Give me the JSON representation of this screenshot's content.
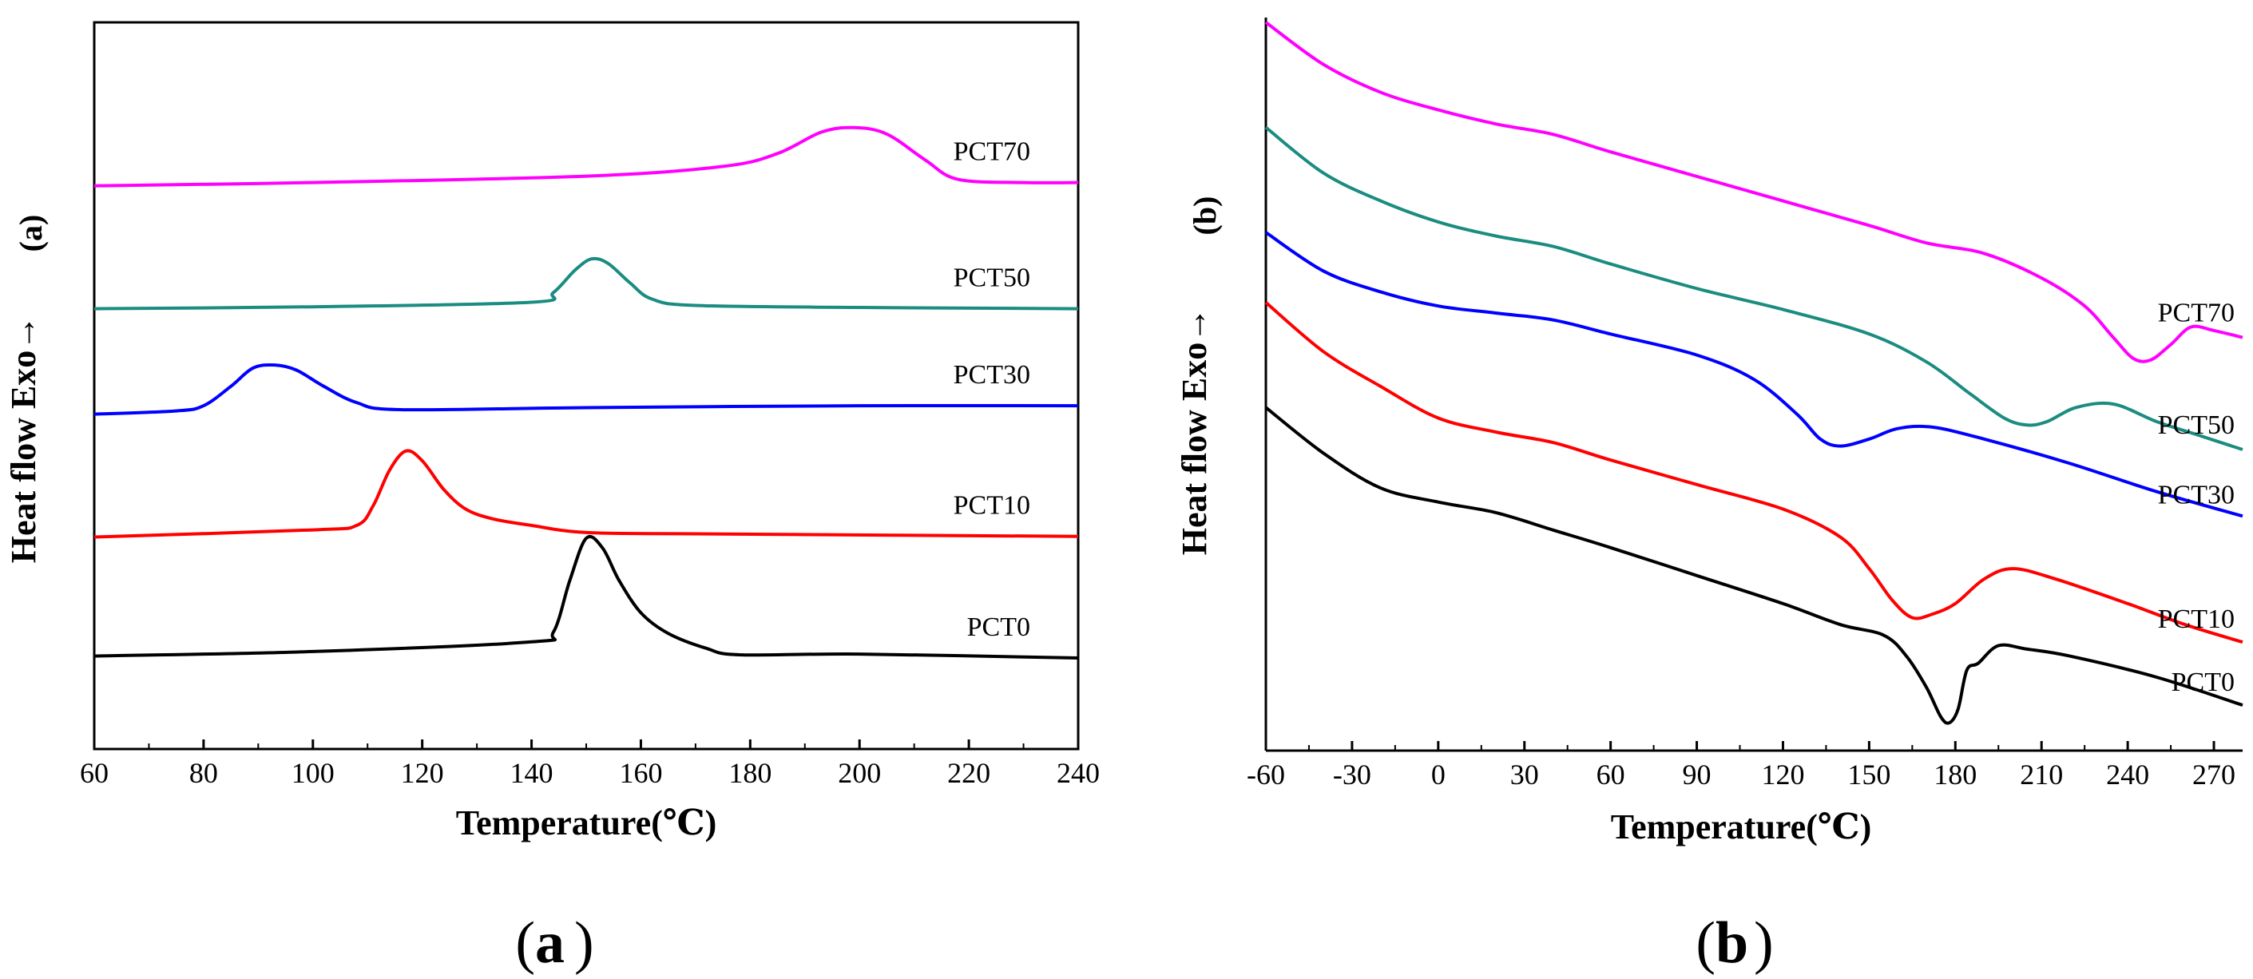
{
  "colors": {
    "PCT0": "#000000",
    "PCT10": "#ff0000",
    "PCT30": "#0000ff",
    "PCT50": "#1a8c80",
    "PCT70": "#ff00ff"
  },
  "chart_data": [
    {
      "panel": "a",
      "type": "line",
      "panel_tag": "(a)",
      "caption_letter": "a",
      "xlabel": "Temperature(℃)",
      "ylabel": "Heat flow   Exo→",
      "xlim": [
        60,
        240
      ],
      "ylim": [
        0,
        100
      ],
      "xticks": [
        60,
        80,
        100,
        120,
        140,
        160,
        180,
        200,
        220,
        240
      ],
      "yticks_shown": false,
      "series": [
        {
          "name": "PCT70",
          "label": "PCT70",
          "x": [
            60,
            100,
            150,
            175,
            185,
            193,
            199,
            205,
            212,
            218,
            230,
            240
          ],
          "y": [
            83,
            83.5,
            84.5,
            86,
            88,
            91.3,
            92,
            91,
            87,
            84,
            83.5,
            83.5
          ]
        },
        {
          "name": "PCT50",
          "label": "PCT50",
          "x": [
            60,
            100,
            140,
            144,
            148,
            151,
            154,
            158,
            162,
            170,
            200,
            240
          ],
          "y": [
            64,
            64.3,
            65,
            66.5,
            70,
            71.7,
            71,
            68,
            65.5,
            64.5,
            64.2,
            64
          ]
        },
        {
          "name": "PCT30",
          "label": "PCT30",
          "x": [
            60,
            75,
            80,
            85,
            89,
            93,
            97,
            102,
            108,
            116,
            150,
            200,
            240
          ],
          "y": [
            47.7,
            48.2,
            49,
            52,
            54.8,
            55.3,
            54.5,
            52,
            49.5,
            48.4,
            48.7,
            49,
            49
          ]
        },
        {
          "name": "PCT10",
          "label": "PCT10",
          "x": [
            60,
            100,
            108,
            111,
            114,
            117,
            120,
            124,
            128,
            133,
            140,
            150,
            170,
            240
          ],
          "y": [
            28.7,
            29.8,
            30.5,
            33.5,
            39,
            42,
            40.5,
            36,
            33,
            31.5,
            30.5,
            29.4,
            29.2,
            28.8
          ]
        },
        {
          "name": "PCT0",
          "label": "PCT0",
          "x": [
            60,
            100,
            140,
            144,
            147,
            150,
            153,
            156,
            160,
            165,
            172,
            178,
            200,
            240
          ],
          "y": [
            10.3,
            11,
            12.5,
            14,
            22,
            28.5,
            27,
            22,
            17,
            13.8,
            11.5,
            10.5,
            10.6,
            10
          ]
        }
      ]
    },
    {
      "panel": "b",
      "type": "line",
      "panel_tag": "(b)",
      "caption_letter": "b",
      "xlabel": "Temperature(℃)",
      "ylabel": "Heat flow   Exo→",
      "xlim": [
        -60,
        280
      ],
      "ylim": [
        0,
        100
      ],
      "xticks": [
        -60,
        -30,
        0,
        30,
        60,
        90,
        120,
        150,
        180,
        210,
        240,
        270
      ],
      "yticks_shown": false,
      "series": [
        {
          "name": "PCT70",
          "label": "PCT70",
          "x": [
            -60,
            -40,
            -20,
            0,
            20,
            40,
            60,
            90,
            120,
            150,
            170,
            190,
            210,
            225,
            235,
            242,
            248,
            255,
            262,
            270,
            280
          ],
          "y": [
            100,
            94,
            90,
            87.5,
            85.5,
            84,
            81.5,
            78,
            74.5,
            71,
            68.5,
            67,
            63.5,
            59.5,
            55,
            52,
            51.8,
            54,
            56.5,
            56,
            55
          ]
        },
        {
          "name": "PCT50",
          "label": "PCT50",
          "x": [
            -60,
            -40,
            -20,
            0,
            20,
            40,
            60,
            90,
            120,
            150,
            170,
            185,
            197,
            205,
            212,
            222,
            235,
            250,
            265,
            280
          ],
          "y": [
            85,
            78.5,
            74.5,
            71.5,
            69.5,
            68,
            65.5,
            62,
            59,
            55.5,
            51.5,
            47,
            43.5,
            42.5,
            43,
            45,
            45.5,
            43,
            41,
            39
          ]
        },
        {
          "name": "PCT30",
          "label": "PCT30",
          "x": [
            -60,
            -40,
            -20,
            0,
            20,
            40,
            60,
            90,
            110,
            125,
            133,
            140,
            150,
            160,
            172,
            190,
            220,
            250,
            280
          ],
          "y": [
            70,
            64.5,
            61.5,
            59.5,
            58.5,
            57.5,
            55.5,
            52.5,
            49,
            44,
            40.5,
            39.5,
            40.5,
            42,
            42.2,
            40.5,
            37,
            33,
            29.5
          ]
        },
        {
          "name": "PCT10",
          "label": "PCT10",
          "x": [
            -60,
            -40,
            -20,
            0,
            20,
            40,
            60,
            90,
            120,
            140,
            150,
            158,
            165,
            172,
            180,
            190,
            200,
            215,
            240,
            260,
            280
          ],
          "y": [
            60,
            53,
            48,
            43.5,
            41.5,
            40,
            37.5,
            34,
            30.5,
            26.5,
            22,
            17.5,
            15,
            15.5,
            17,
            20.5,
            22,
            20.5,
            17,
            14,
            11.5
          ]
        },
        {
          "name": "PCT0",
          "label": "PCT0",
          "x": [
            -60,
            -40,
            -20,
            0,
            20,
            40,
            60,
            90,
            120,
            140,
            155,
            163,
            170,
            175,
            178,
            181,
            184,
            188,
            195,
            205,
            220,
            250,
            280
          ],
          "y": [
            45,
            38.5,
            33.5,
            31.5,
            30,
            27.5,
            25,
            21,
            17,
            14,
            12.5,
            9.5,
            5,
            0.8,
            0,
            2,
            7.5,
            8.5,
            11,
            10.5,
            9.5,
            6.5,
            2.5
          ]
        }
      ]
    }
  ]
}
